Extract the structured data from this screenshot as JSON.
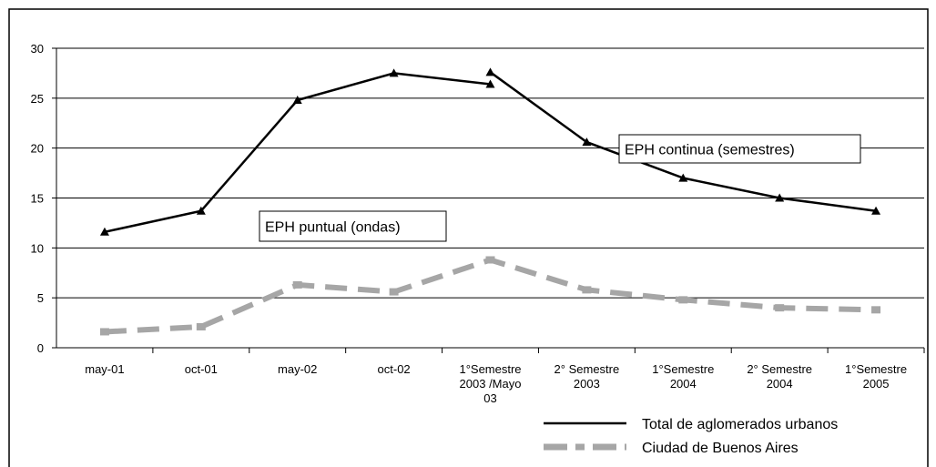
{
  "chart_data": {
    "type": "line",
    "categories": [
      "may-01",
      "oct-01",
      "may-02",
      "oct-02",
      "1°Semestre\n2003 /Mayo\n03",
      "2° Semestre\n2003",
      "1°Semestre\n2004",
      "2° Semestre\n2004",
      "1°Semestre\n2005"
    ],
    "ylim": [
      0,
      30
    ],
    "yticks": [
      0,
      5,
      10,
      15,
      20,
      25,
      30
    ],
    "grid": true,
    "series": [
      {
        "name": "Total de aglomerados urbanos",
        "color": "#000000",
        "marker": "triangle",
        "segments": [
          {
            "annotation": "EPH puntual (ondas)",
            "values": [
              11.6,
              13.7,
              24.8,
              27.5,
              26.4,
              null,
              null,
              null,
              null
            ]
          },
          {
            "annotation": "EPH continua (semestres)",
            "values": [
              null,
              null,
              null,
              null,
              27.6,
              20.6,
              17.0,
              15.0,
              13.7
            ]
          }
        ]
      },
      {
        "name": "Ciudad de Buenos Aires",
        "color": "#a6a6a6",
        "marker": "square",
        "dashed": true,
        "values": [
          1.6,
          2.1,
          6.3,
          5.6,
          8.8,
          5.8,
          4.8,
          4.0,
          3.8
        ]
      }
    ]
  }
}
